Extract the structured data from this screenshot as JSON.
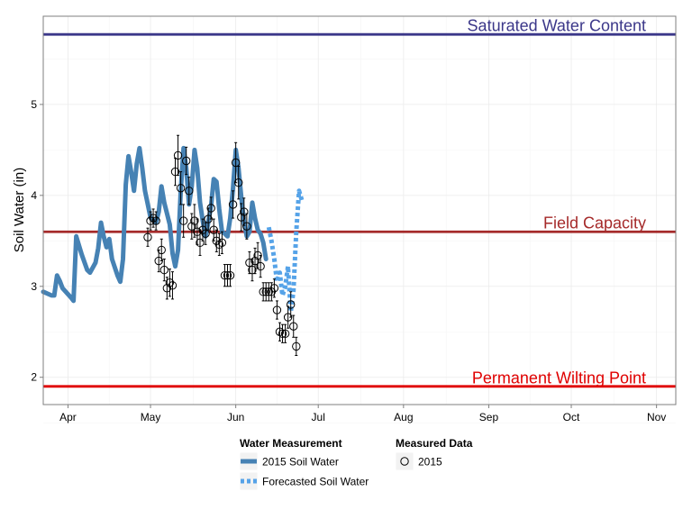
{
  "chart_data": {
    "type": "line",
    "title": "",
    "xlabel": "",
    "ylabel": "Soil Water (in)",
    "x_type": "date",
    "xlim": [
      "2015-03-23",
      "2015-11-08"
    ],
    "ylim": [
      1.7,
      5.97
    ],
    "grid": true,
    "x_ticks": [
      {
        "date": "2015-04-01",
        "label": "Apr"
      },
      {
        "date": "2015-05-01",
        "label": "May"
      },
      {
        "date": "2015-06-01",
        "label": "Jun"
      },
      {
        "date": "2015-07-01",
        "label": "Jul"
      },
      {
        "date": "2015-08-01",
        "label": "Aug"
      },
      {
        "date": "2015-09-01",
        "label": "Sep"
      },
      {
        "date": "2015-10-01",
        "label": "Oct"
      },
      {
        "date": "2015-11-01",
        "label": "Nov"
      }
    ],
    "y_ticks": [
      2,
      3,
      4,
      5
    ],
    "reference_lines": [
      {
        "label": "Saturated Water Content",
        "y": 5.77,
        "color": "#3b3789"
      },
      {
        "label": "Field Capacity",
        "y": 3.6,
        "color": "#a52a2a"
      },
      {
        "label": "Permanent Wilting Point",
        "y": 1.9,
        "color": "#e00000"
      }
    ],
    "series": [
      {
        "name": "2015 Soil Water",
        "kind": "line",
        "color": "#4682b4",
        "dash": "solid",
        "points": [
          [
            "2015-03-23",
            2.94
          ],
          [
            "2015-03-26",
            2.9
          ],
          [
            "2015-03-27",
            2.9
          ],
          [
            "2015-03-28",
            3.12
          ],
          [
            "2015-03-29",
            3.06
          ],
          [
            "2015-03-30",
            2.98
          ],
          [
            "2015-04-02",
            2.88
          ],
          [
            "2015-04-03",
            2.84
          ],
          [
            "2015-04-04",
            3.55
          ],
          [
            "2015-04-06",
            3.35
          ],
          [
            "2015-04-08",
            3.18
          ],
          [
            "2015-04-09",
            3.15
          ],
          [
            "2015-04-11",
            3.26
          ],
          [
            "2015-04-12",
            3.42
          ],
          [
            "2015-04-13",
            3.7
          ],
          [
            "2015-04-14",
            3.55
          ],
          [
            "2015-04-15",
            3.43
          ],
          [
            "2015-04-16",
            3.52
          ],
          [
            "2015-04-17",
            3.3
          ],
          [
            "2015-04-19",
            3.12
          ],
          [
            "2015-04-20",
            3.05
          ],
          [
            "2015-04-21",
            3.3
          ],
          [
            "2015-04-22",
            4.12
          ],
          [
            "2015-04-23",
            4.43
          ],
          [
            "2015-04-24",
            4.25
          ],
          [
            "2015-04-25",
            4.05
          ],
          [
            "2015-04-26",
            4.35
          ],
          [
            "2015-04-27",
            4.52
          ],
          [
            "2015-04-28",
            4.3
          ],
          [
            "2015-04-29",
            4.05
          ],
          [
            "2015-05-01",
            3.76
          ],
          [
            "2015-05-03",
            3.7
          ],
          [
            "2015-05-04",
            3.82
          ],
          [
            "2015-05-05",
            4.1
          ],
          [
            "2015-05-06",
            3.92
          ],
          [
            "2015-05-08",
            3.68
          ],
          [
            "2015-05-09",
            3.36
          ],
          [
            "2015-05-10",
            3.22
          ],
          [
            "2015-05-11",
            3.4
          ],
          [
            "2015-05-12",
            4.05
          ],
          [
            "2015-05-13",
            4.52
          ],
          [
            "2015-05-14",
            4.3
          ],
          [
            "2015-05-15",
            3.9
          ],
          [
            "2015-05-16",
            4.1
          ],
          [
            "2015-05-17",
            4.5
          ],
          [
            "2015-05-18",
            4.3
          ],
          [
            "2015-05-19",
            3.92
          ],
          [
            "2015-05-20",
            3.72
          ],
          [
            "2015-05-21",
            3.55
          ],
          [
            "2015-05-22",
            3.7
          ],
          [
            "2015-05-23",
            3.88
          ],
          [
            "2015-05-24",
            4.18
          ],
          [
            "2015-05-25",
            4.15
          ],
          [
            "2015-05-26",
            3.85
          ],
          [
            "2015-05-27",
            3.6
          ],
          [
            "2015-05-28",
            3.58
          ],
          [
            "2015-05-29",
            3.55
          ],
          [
            "2015-05-30",
            3.75
          ],
          [
            "2015-05-31",
            4.08
          ],
          [
            "2015-06-01",
            4.5
          ],
          [
            "2015-06-02",
            4.3
          ],
          [
            "2015-06-03",
            3.98
          ],
          [
            "2015-06-04",
            3.7
          ],
          [
            "2015-06-05",
            3.55
          ],
          [
            "2015-06-06",
            3.6
          ],
          [
            "2015-06-07",
            3.92
          ],
          [
            "2015-06-08",
            3.75
          ],
          [
            "2015-06-09",
            3.62
          ],
          [
            "2015-06-10",
            3.58
          ],
          [
            "2015-06-11",
            3.48
          ],
          [
            "2015-06-12",
            3.3
          ]
        ]
      },
      {
        "name": "Forecasted Soil Water",
        "kind": "line",
        "color": "#56a3e8",
        "dash": "dotted",
        "points": [
          [
            "2015-06-13",
            3.65
          ],
          [
            "2015-06-14",
            3.5
          ],
          [
            "2015-06-15",
            3.3
          ],
          [
            "2015-06-16",
            3.05
          ],
          [
            "2015-06-17",
            3.15
          ],
          [
            "2015-06-18",
            2.9
          ],
          [
            "2015-06-19",
            3.0
          ],
          [
            "2015-06-20",
            3.22
          ],
          [
            "2015-06-21",
            2.72
          ],
          [
            "2015-06-22",
            2.95
          ],
          [
            "2015-06-23",
            3.6
          ],
          [
            "2015-06-24",
            4.05
          ],
          [
            "2015-06-25",
            3.95
          ]
        ]
      },
      {
        "name": "2015",
        "kind": "scatter",
        "marker": "open-circle",
        "color": "#000000",
        "points": [
          [
            "2015-04-30",
            3.54,
            0.1
          ],
          [
            "2015-05-01",
            3.72,
            0.1
          ],
          [
            "2015-05-02",
            3.75,
            0.1
          ],
          [
            "2015-05-03",
            3.72,
            0.1
          ],
          [
            "2015-05-04",
            3.28,
            0.12
          ],
          [
            "2015-05-05",
            3.4,
            0.12
          ],
          [
            "2015-05-06",
            3.18,
            0.12
          ],
          [
            "2015-05-07",
            2.98,
            0.12
          ],
          [
            "2015-05-08",
            3.04,
            0.15
          ],
          [
            "2015-05-09",
            3.01,
            0.15
          ],
          [
            "2015-05-10",
            4.26,
            0.15
          ],
          [
            "2015-05-11",
            4.44,
            0.22
          ],
          [
            "2015-05-12",
            4.08,
            0.18
          ],
          [
            "2015-05-13",
            3.72,
            0.18
          ],
          [
            "2015-05-14",
            4.38,
            0.15
          ],
          [
            "2015-05-15",
            4.05,
            0.15
          ],
          [
            "2015-05-16",
            3.66,
            0.14
          ],
          [
            "2015-05-17",
            3.72,
            0.18
          ],
          [
            "2015-05-18",
            3.6,
            0.14
          ],
          [
            "2015-05-19",
            3.48,
            0.14
          ],
          [
            "2015-05-20",
            3.62,
            0.12
          ],
          [
            "2015-05-21",
            3.58,
            0.12
          ],
          [
            "2015-05-22",
            3.74,
            0.12
          ],
          [
            "2015-05-23",
            3.86,
            0.12
          ],
          [
            "2015-05-24",
            3.62,
            0.12
          ],
          [
            "2015-05-25",
            3.5,
            0.12
          ],
          [
            "2015-05-26",
            3.46,
            0.12
          ],
          [
            "2015-05-27",
            3.48,
            0.12
          ],
          [
            "2015-05-28",
            3.12,
            0.12
          ],
          [
            "2015-05-29",
            3.12,
            0.12
          ],
          [
            "2015-05-30",
            3.12,
            0.12
          ],
          [
            "2015-05-31",
            3.9,
            0.15
          ],
          [
            "2015-06-01",
            4.36,
            0.22
          ],
          [
            "2015-06-02",
            4.14,
            0.18
          ],
          [
            "2015-06-03",
            3.76,
            0.15
          ],
          [
            "2015-06-04",
            3.82,
            0.15
          ],
          [
            "2015-06-05",
            3.66,
            0.14
          ],
          [
            "2015-06-06",
            3.26,
            0.12
          ],
          [
            "2015-06-07",
            3.18,
            0.12
          ],
          [
            "2015-06-08",
            3.28,
            0.14
          ],
          [
            "2015-06-09",
            3.34,
            0.14
          ],
          [
            "2015-06-10",
            3.22,
            0.12
          ],
          [
            "2015-06-11",
            2.94,
            0.1
          ],
          [
            "2015-06-12",
            2.94,
            0.1
          ],
          [
            "2015-06-13",
            2.94,
            0.1
          ],
          [
            "2015-06-14",
            2.94,
            0.1
          ],
          [
            "2015-06-15",
            2.98,
            0.1
          ],
          [
            "2015-06-16",
            2.74,
            0.1
          ],
          [
            "2015-06-17",
            2.5,
            0.1
          ],
          [
            "2015-06-18",
            2.48,
            0.1
          ],
          [
            "2015-06-19",
            2.48,
            0.1
          ],
          [
            "2015-06-20",
            2.66,
            0.12
          ],
          [
            "2015-06-21",
            2.8,
            0.14
          ],
          [
            "2015-06-22",
            2.56,
            0.12
          ],
          [
            "2015-06-23",
            2.34,
            0.1
          ]
        ]
      }
    ],
    "legend": {
      "placement": "bottom",
      "groups": [
        {
          "title": "Water Measurement",
          "entries": [
            {
              "label": "2015 Soil Water",
              "color": "#4682b4",
              "dash": "solid"
            },
            {
              "label": "Forecasted Soil Water",
              "color": "#56a3e8",
              "dash": "dotted"
            }
          ]
        },
        {
          "title": "Measured Data",
          "entries": [
            {
              "label": "2015",
              "marker": "open-circle"
            }
          ]
        }
      ]
    }
  }
}
